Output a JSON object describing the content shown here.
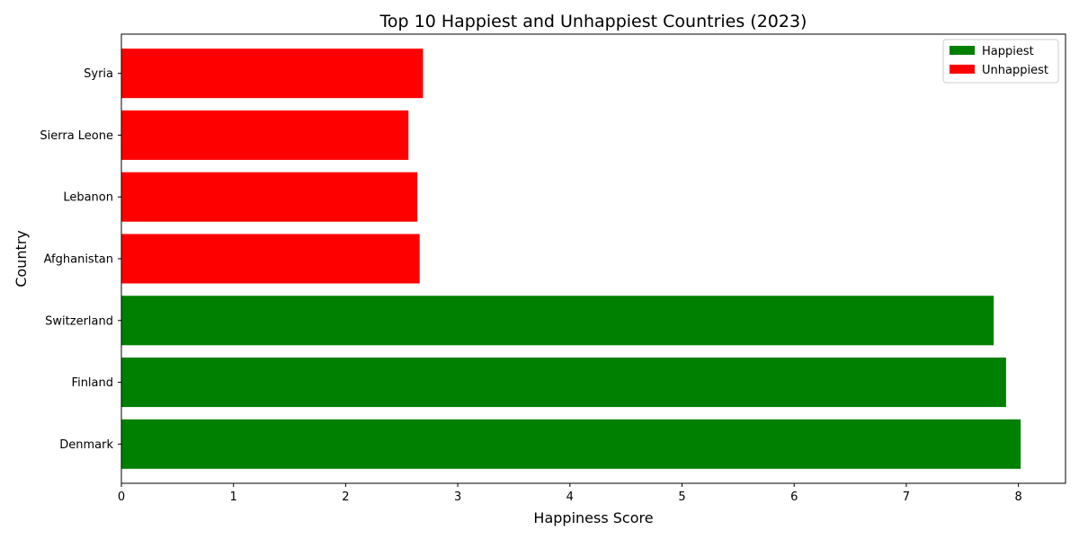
{
  "chart_data": {
    "type": "bar",
    "orientation": "horizontal",
    "title": "Top 10 Happiest and Unhappiest Countries (2023)",
    "xlabel": "Happiness Score",
    "ylabel": "Country",
    "xlim": [
      0,
      8.42
    ],
    "x_ticks": [
      "0",
      "1",
      "2",
      "3",
      "4",
      "5",
      "6",
      "7",
      "8"
    ],
    "grid": false,
    "legend_position": "top-right",
    "categories": [
      "Denmark",
      "Finland",
      "Switzerland",
      "Afghanistan",
      "Lebanon",
      "Sierra Leone",
      "Syria"
    ],
    "series": [
      {
        "name": "Happiest",
        "color": "#008000",
        "values": [
          8.02,
          7.89,
          7.78,
          null,
          null,
          null,
          null
        ]
      },
      {
        "name": "Unhappiest",
        "color": "#ff0000",
        "values": [
          null,
          null,
          null,
          2.66,
          2.64,
          2.56,
          2.69
        ]
      }
    ]
  }
}
